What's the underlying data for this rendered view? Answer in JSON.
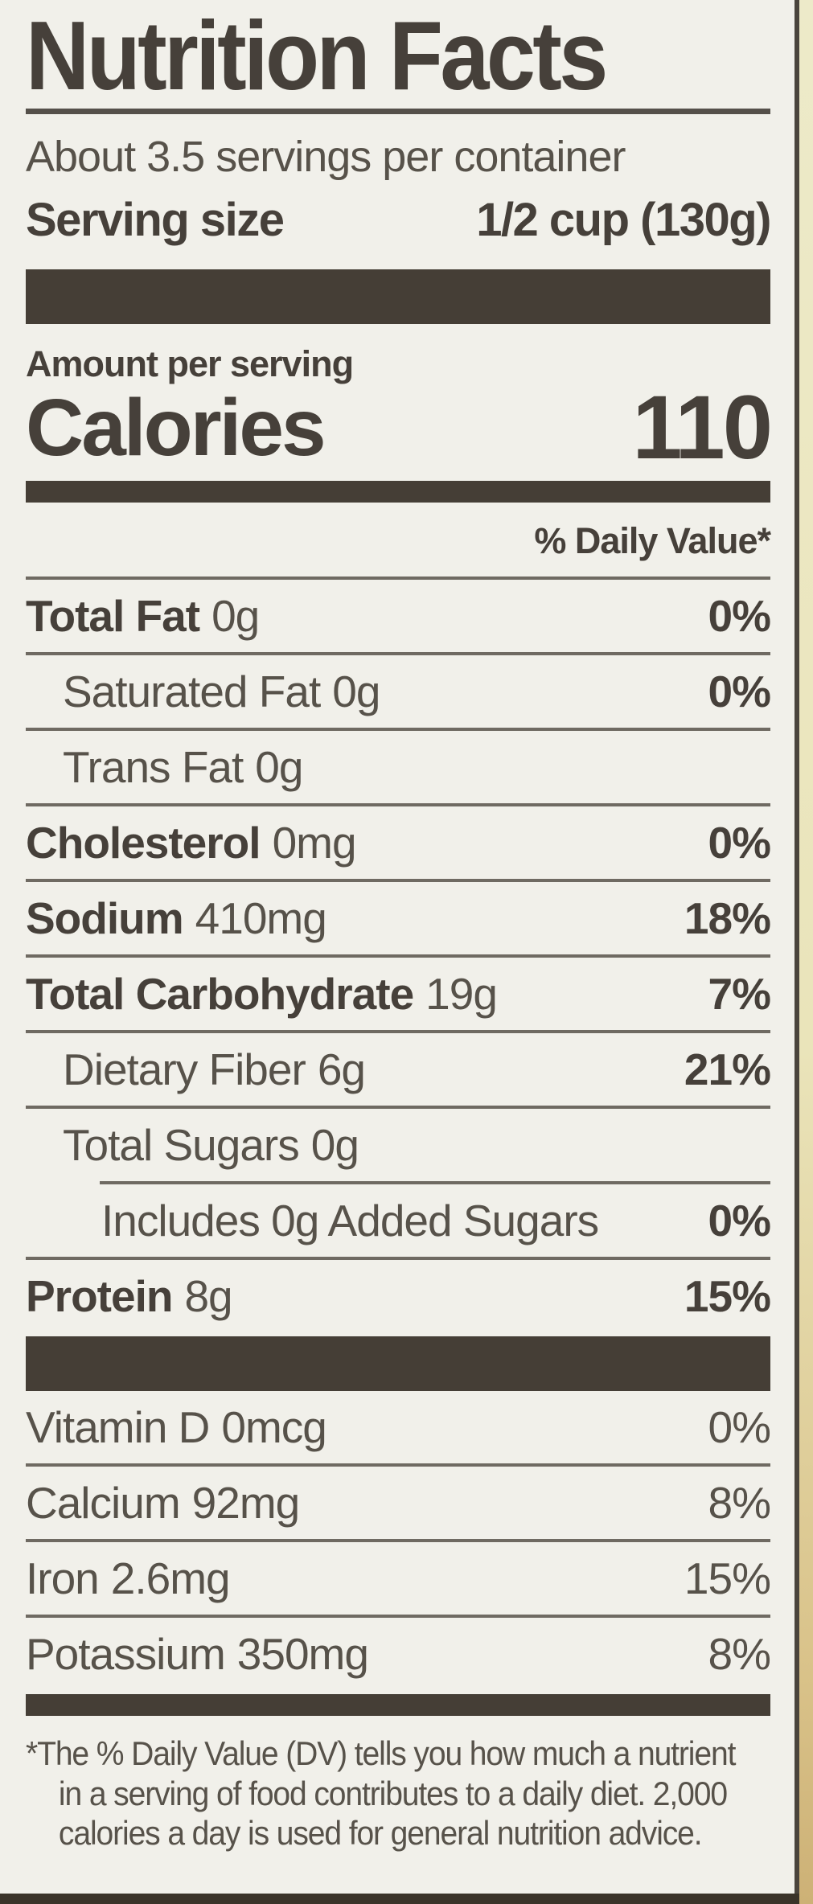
{
  "label": {
    "title": "Nutrition Facts",
    "servings_per_container": "About 3.5 servings per container",
    "serving_size_label": "Serving size",
    "serving_size_value": "1/2 cup (130g)",
    "amount_per_serving": "Amount per serving",
    "calories_label": "Calories",
    "calories_value": "110",
    "daily_value_header": "% Daily Value*",
    "rows": [
      {
        "label": "Total Fat",
        "amount": "0g",
        "dv": "0%"
      },
      {
        "label": "Saturated Fat",
        "amount": "0g",
        "dv": "0%"
      },
      {
        "label": "Trans Fat",
        "amount": "0g",
        "dv": ""
      },
      {
        "label": "Cholesterol",
        "amount": "0mg",
        "dv": "0%"
      },
      {
        "label": "Sodium",
        "amount": "410mg",
        "dv": "18%"
      },
      {
        "label": "Total Carbohydrate",
        "amount": "19g",
        "dv": "7%"
      },
      {
        "label": "Dietary Fiber",
        "amount": "6g",
        "dv": "21%"
      },
      {
        "label": "Total Sugars",
        "amount": "0g",
        "dv": ""
      },
      {
        "label": "Includes 0g Added Sugars",
        "amount": "",
        "dv": "0%"
      },
      {
        "label": "Protein",
        "amount": "8g",
        "dv": "15%"
      }
    ],
    "vitamins": [
      {
        "label": "Vitamin D",
        "amount": "0mcg",
        "dv": "0%"
      },
      {
        "label": "Calcium",
        "amount": "92mg",
        "dv": "8%"
      },
      {
        "label": "Iron",
        "amount": "2.6mg",
        "dv": "15%"
      },
      {
        "label": "Potassium",
        "amount": "350mg",
        "dv": "8%"
      }
    ],
    "footnote_lines": [
      "*The % Daily Value (DV) tells you how much a nutrient",
      "in a serving of food contributes to a daily diet. 2,000",
      "calories a day is used for general nutrition advice."
    ]
  },
  "colors": {
    "label_background": "#f1f0ea",
    "text_bold": "#46403a",
    "text_regular": "#57524a",
    "divider_bar": "#453e36",
    "hairline": "#6f6a62",
    "package_strip_top": "#edeac9",
    "package_strip_bottom": "#cdb176",
    "label_border": "#4a443c"
  }
}
